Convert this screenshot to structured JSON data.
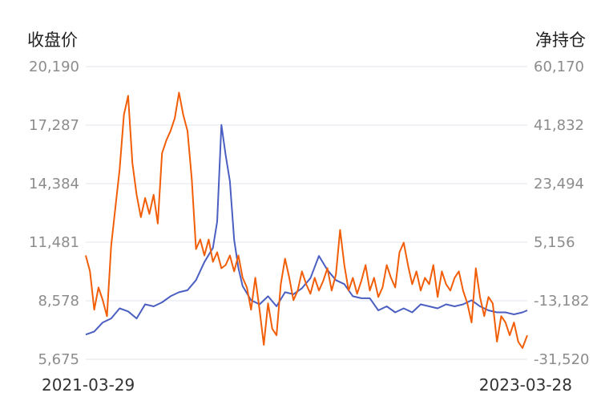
{
  "chart_data": {
    "type": "line",
    "left_axis": {
      "title": "收盘价",
      "ticks": [
        "20,190",
        "17,287",
        "14,384",
        "11,481",
        "8,578",
        "5,675"
      ],
      "range": [
        5675,
        20190
      ]
    },
    "right_axis": {
      "title": "净持仓",
      "ticks": [
        "60,170",
        "41,832",
        "23,494",
        "5,156",
        "-13,182",
        "-31,520"
      ],
      "range": [
        -31520,
        60170
      ]
    },
    "x_labels": {
      "start": "2021-03-29",
      "end": "2023-03-28"
    },
    "grid": true,
    "series": [
      {
        "axis": "left",
        "color": "#4a5fc1",
        "points": [
          [
            "2021-03-29",
            6900
          ],
          [
            "2021-04-12",
            7050
          ],
          [
            "2021-04-26",
            7500
          ],
          [
            "2021-05-10",
            7700
          ],
          [
            "2021-05-24",
            8200
          ],
          [
            "2021-06-07",
            8050
          ],
          [
            "2021-06-21",
            7700
          ],
          [
            "2021-07-05",
            8400
          ],
          [
            "2021-07-19",
            8300
          ],
          [
            "2021-08-02",
            8500
          ],
          [
            "2021-08-16",
            8800
          ],
          [
            "2021-08-30",
            9000
          ],
          [
            "2021-09-13",
            9100
          ],
          [
            "2021-09-27",
            9600
          ],
          [
            "2021-10-11",
            10500
          ],
          [
            "2021-10-25",
            11200
          ],
          [
            "2021-11-01",
            12500
          ],
          [
            "2021-11-08",
            17300
          ],
          [
            "2021-11-15",
            15800
          ],
          [
            "2021-11-22",
            14500
          ],
          [
            "2021-11-29",
            11600
          ],
          [
            "2021-12-06",
            10200
          ],
          [
            "2021-12-13",
            9300
          ],
          [
            "2021-12-27",
            8600
          ],
          [
            "2022-01-10",
            8400
          ],
          [
            "2022-01-24",
            8800
          ],
          [
            "2022-02-07",
            8300
          ],
          [
            "2022-02-21",
            9000
          ],
          [
            "2022-03-07",
            8900
          ],
          [
            "2022-03-21",
            9200
          ],
          [
            "2022-04-04",
            9700
          ],
          [
            "2022-04-18",
            10800
          ],
          [
            "2022-05-02",
            10100
          ],
          [
            "2022-05-16",
            9600
          ],
          [
            "2022-05-30",
            9400
          ],
          [
            "2022-06-13",
            8800
          ],
          [
            "2022-06-27",
            8700
          ],
          [
            "2022-07-11",
            8700
          ],
          [
            "2022-07-25",
            8100
          ],
          [
            "2022-08-08",
            8300
          ],
          [
            "2022-08-22",
            8000
          ],
          [
            "2022-09-05",
            8200
          ],
          [
            "2022-09-19",
            8000
          ],
          [
            "2022-10-03",
            8400
          ],
          [
            "2022-10-17",
            8300
          ],
          [
            "2022-10-31",
            8200
          ],
          [
            "2022-11-14",
            8400
          ],
          [
            "2022-11-28",
            8300
          ],
          [
            "2022-12-12",
            8400
          ],
          [
            "2022-12-26",
            8600
          ],
          [
            "2023-01-09",
            8300
          ],
          [
            "2023-01-23",
            8100
          ],
          [
            "2023-02-06",
            8000
          ],
          [
            "2023-02-20",
            8000
          ],
          [
            "2023-03-06",
            7900
          ],
          [
            "2023-03-20",
            8000
          ],
          [
            "2023-03-28",
            8100
          ]
        ]
      },
      {
        "axis": "right",
        "color": "#f25e08",
        "points": [
          [
            "2021-03-29",
            1000
          ],
          [
            "2021-04-05",
            -4000
          ],
          [
            "2021-04-12",
            -16000
          ],
          [
            "2021-04-19",
            -9000
          ],
          [
            "2021-04-26",
            -13000
          ],
          [
            "2021-05-03",
            -18000
          ],
          [
            "2021-05-10",
            4000
          ],
          [
            "2021-05-17",
            16000
          ],
          [
            "2021-05-24",
            28000
          ],
          [
            "2021-05-31",
            45000
          ],
          [
            "2021-06-07",
            51000
          ],
          [
            "2021-06-14",
            30000
          ],
          [
            "2021-06-21",
            20000
          ],
          [
            "2021-06-28",
            13000
          ],
          [
            "2021-07-05",
            19000
          ],
          [
            "2021-07-12",
            14000
          ],
          [
            "2021-07-19",
            20000
          ],
          [
            "2021-07-26",
            11000
          ],
          [
            "2021-08-02",
            33000
          ],
          [
            "2021-08-09",
            37000
          ],
          [
            "2021-08-16",
            40000
          ],
          [
            "2021-08-23",
            44000
          ],
          [
            "2021-08-30",
            52000
          ],
          [
            "2021-09-06",
            45000
          ],
          [
            "2021-09-13",
            40000
          ],
          [
            "2021-09-20",
            25000
          ],
          [
            "2021-09-27",
            3000
          ],
          [
            "2021-10-04",
            6000
          ],
          [
            "2021-10-11",
            1000
          ],
          [
            "2021-10-18",
            6000
          ],
          [
            "2021-10-25",
            -1000
          ],
          [
            "2021-11-01",
            2000
          ],
          [
            "2021-11-08",
            -3000
          ],
          [
            "2021-11-15",
            -2000
          ],
          [
            "2021-11-22",
            1000
          ],
          [
            "2021-11-29",
            -4000
          ],
          [
            "2021-12-06",
            1000
          ],
          [
            "2021-12-13",
            -6000
          ],
          [
            "2021-12-20",
            -9000
          ],
          [
            "2021-12-27",
            -16000
          ],
          [
            "2022-01-03",
            -6000
          ],
          [
            "2022-01-10",
            -16000
          ],
          [
            "2022-01-17",
            -27000
          ],
          [
            "2022-01-24",
            -14000
          ],
          [
            "2022-01-31",
            -22000
          ],
          [
            "2022-02-07",
            -24000
          ],
          [
            "2022-02-14",
            -8000
          ],
          [
            "2022-02-21",
            0
          ],
          [
            "2022-02-28",
            -6000
          ],
          [
            "2022-03-07",
            -13000
          ],
          [
            "2022-03-14",
            -10000
          ],
          [
            "2022-03-21",
            -4000
          ],
          [
            "2022-03-28",
            -8000
          ],
          [
            "2022-04-04",
            -11000
          ],
          [
            "2022-04-11",
            -6000
          ],
          [
            "2022-04-18",
            -10000
          ],
          [
            "2022-04-25",
            -7000
          ],
          [
            "2022-05-02",
            -3000
          ],
          [
            "2022-05-09",
            -10000
          ],
          [
            "2022-05-16",
            -5000
          ],
          [
            "2022-05-23",
            9000
          ],
          [
            "2022-05-30",
            -2000
          ],
          [
            "2022-06-06",
            -10000
          ],
          [
            "2022-06-13",
            -6000
          ],
          [
            "2022-06-20",
            -11000
          ],
          [
            "2022-06-27",
            -7000
          ],
          [
            "2022-07-04",
            -2000
          ],
          [
            "2022-07-11",
            -10000
          ],
          [
            "2022-07-18",
            -6000
          ],
          [
            "2022-07-25",
            -12000
          ],
          [
            "2022-08-01",
            -9000
          ],
          [
            "2022-08-08",
            -2000
          ],
          [
            "2022-08-15",
            -6000
          ],
          [
            "2022-08-22",
            -9000
          ],
          [
            "2022-08-29",
            2000
          ],
          [
            "2022-09-05",
            5000
          ],
          [
            "2022-09-12",
            -2000
          ],
          [
            "2022-09-19",
            -8000
          ],
          [
            "2022-09-26",
            -4000
          ],
          [
            "2022-10-03",
            -10000
          ],
          [
            "2022-10-10",
            -6000
          ],
          [
            "2022-10-17",
            -8000
          ],
          [
            "2022-10-24",
            -2000
          ],
          [
            "2022-10-31",
            -12000
          ],
          [
            "2022-11-07",
            -4000
          ],
          [
            "2022-11-14",
            -8000
          ],
          [
            "2022-11-21",
            -10000
          ],
          [
            "2022-11-28",
            -6000
          ],
          [
            "2022-12-05",
            -4000
          ],
          [
            "2022-12-12",
            -10000
          ],
          [
            "2022-12-19",
            -14000
          ],
          [
            "2022-12-26",
            -20000
          ],
          [
            "2023-01-02",
            -3000
          ],
          [
            "2023-01-09",
            -12000
          ],
          [
            "2023-01-16",
            -18000
          ],
          [
            "2023-01-23",
            -12000
          ],
          [
            "2023-01-30",
            -14000
          ],
          [
            "2023-02-06",
            -26000
          ],
          [
            "2023-02-13",
            -18000
          ],
          [
            "2023-02-20",
            -20000
          ],
          [
            "2023-02-27",
            -24000
          ],
          [
            "2023-03-06",
            -20000
          ],
          [
            "2023-03-13",
            -26000
          ],
          [
            "2023-03-20",
            -28000
          ],
          [
            "2023-03-28",
            -24000
          ]
        ]
      }
    ]
  }
}
